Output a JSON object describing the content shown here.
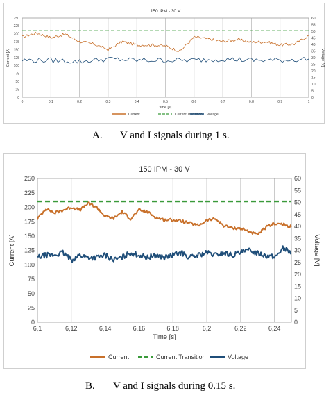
{
  "captions": {
    "a_letter": "A.",
    "a_text": "V and I signals during 1 s.",
    "b_letter": "B.",
    "b_text": "V and I signals during 0.15 s."
  },
  "chart_data": [
    {
      "type": "line",
      "title": "150 IPM - 30 V",
      "xlabel": "time [s]",
      "ylabel_left": "Current [A]",
      "ylabel_right": "Voltage [V]",
      "xlim": [
        0,
        1
      ],
      "ylim_left": [
        0,
        250
      ],
      "ylim_right": [
        0,
        60
      ],
      "x_ticks": [
        "0",
        "0,1",
        "0,2",
        "0,3",
        "0,4",
        "0,5",
        "0,6",
        "0,7",
        "0,8",
        "0,9",
        "1"
      ],
      "y_left_ticks": [
        "0",
        "25",
        "50",
        "75",
        "100",
        "125",
        "150",
        "175",
        "200",
        "225",
        "250"
      ],
      "y_right_ticks": [
        "0",
        "5",
        "10",
        "15",
        "20",
        "25",
        "30",
        "35",
        "40",
        "45",
        "50",
        "55",
        "60"
      ],
      "grid": "vertical",
      "legend_position": "bottom",
      "series": [
        {
          "name": "Current",
          "axis": "left",
          "color": "#c8702a",
          "x": [
            0,
            0.05,
            0.1,
            0.15,
            0.2,
            0.25,
            0.3,
            0.35,
            0.4,
            0.45,
            0.5,
            0.55,
            0.6,
            0.65,
            0.7,
            0.75,
            0.8,
            0.85,
            0.9,
            0.95,
            1
          ],
          "values": [
            190,
            203,
            188,
            199,
            176,
            168,
            150,
            176,
            165,
            165,
            162,
            145,
            190,
            184,
            176,
            182,
            174,
            175,
            165,
            168,
            195
          ]
        },
        {
          "name": "Current Transition",
          "axis": "left",
          "color": "#3a9a3a",
          "dashed": true,
          "x": [
            0,
            1
          ],
          "values": [
            210,
            210
          ]
        },
        {
          "name": "Voltage",
          "axis": "right",
          "color": "#1f4e79",
          "x": [
            0,
            0.1,
            0.2,
            0.3,
            0.4,
            0.5,
            0.6,
            0.7,
            0.8,
            0.9,
            1
          ],
          "values": [
            28,
            28,
            27,
            29,
            28,
            28,
            28,
            29,
            28,
            28,
            29
          ]
        }
      ]
    },
    {
      "type": "line",
      "title": "150 IPM - 30 V",
      "xlabel": "Time [s]",
      "ylabel_left": "Current [A]",
      "ylabel_right": "Voltage [V]",
      "xlim": [
        6.1,
        6.25
      ],
      "ylim_left": [
        0,
        250
      ],
      "ylim_right": [
        0,
        60
      ],
      "x_ticks": [
        "6,1",
        "6,12",
        "6,14",
        "6,16",
        "6,18",
        "6,2",
        "6,22",
        "6,24"
      ],
      "y_left_ticks": [
        "0",
        "25",
        "50",
        "75",
        "100",
        "125",
        "150",
        "175",
        "200",
        "225",
        "250"
      ],
      "y_right_ticks": [
        "0",
        "5",
        "10",
        "15",
        "20",
        "25",
        "30",
        "35",
        "40",
        "45",
        "50",
        "55",
        "60"
      ],
      "grid": "vertical",
      "legend_position": "bottom",
      "series": [
        {
          "name": "Current",
          "axis": "left",
          "color": "#c8702a",
          "x": [
            6.1,
            6.105,
            6.11,
            6.115,
            6.12,
            6.125,
            6.13,
            6.135,
            6.14,
            6.145,
            6.15,
            6.155,
            6.16,
            6.165,
            6.17,
            6.175,
            6.18,
            6.185,
            6.19,
            6.195,
            6.2,
            6.205,
            6.21,
            6.215,
            6.22,
            6.225,
            6.23,
            6.235,
            6.24,
            6.245,
            6.25
          ],
          "values": [
            180,
            198,
            190,
            195,
            200,
            195,
            207,
            200,
            184,
            181,
            192,
            180,
            195,
            192,
            182,
            178,
            178,
            176,
            172,
            168,
            177,
            180,
            168,
            164,
            163,
            158,
            152,
            165,
            172,
            170,
            166
          ]
        },
        {
          "name": "Current Transition",
          "axis": "left",
          "color": "#3a9a3a",
          "dashed": true,
          "x": [
            6.1,
            6.25
          ],
          "values": [
            210,
            210
          ]
        },
        {
          "name": "Voltage",
          "axis": "right",
          "color": "#1f4e79",
          "x": [
            6.1,
            6.105,
            6.11,
            6.115,
            6.12,
            6.125,
            6.13,
            6.135,
            6.14,
            6.145,
            6.15,
            6.155,
            6.16,
            6.165,
            6.17,
            6.175,
            6.18,
            6.185,
            6.19,
            6.195,
            6.2,
            6.205,
            6.21,
            6.215,
            6.22,
            6.225,
            6.23,
            6.235,
            6.24,
            6.245,
            6.25
          ],
          "values": [
            27,
            28,
            28,
            29,
            26,
            28,
            27,
            27,
            28,
            26,
            27,
            29,
            28,
            27,
            28,
            27,
            28,
            29,
            27,
            28,
            29,
            28,
            29,
            28,
            29,
            30,
            29,
            28,
            27,
            31,
            29
          ]
        }
      ]
    }
  ]
}
